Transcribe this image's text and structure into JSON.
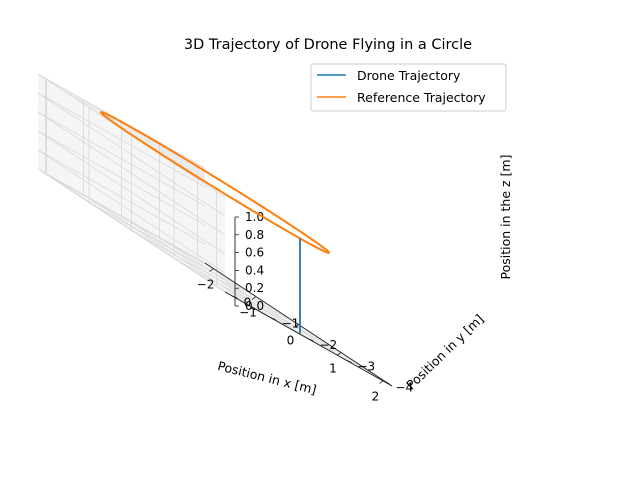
{
  "chart_data": {
    "type": "line",
    "projection": "3d",
    "title": "3D Trajectory of Drone Flying in a Circle",
    "xlabel": "Position in x [m]",
    "ylabel": "Position in y [m]",
    "zlabel": "Position in the z [m]",
    "xlim": [
      -2.2,
      2.2
    ],
    "ylim": [
      -4.2,
      0.2
    ],
    "zlim": [
      0,
      1.0
    ],
    "xticks": [
      "−2",
      "−1",
      "0",
      "1",
      "2"
    ],
    "yticks": [
      "−4",
      "−3",
      "−2",
      "−1",
      "0"
    ],
    "zticks": [
      "0.0",
      "0.2",
      "0.4",
      "0.6",
      "0.8",
      "1.0"
    ],
    "grid": true,
    "legend_position": "top-right",
    "series": [
      {
        "name": "Drone Trajectory",
        "color": "#1f77b4",
        "shape": "vertical climb",
        "x": [
          2.0,
          2.0
        ],
        "y": [
          -2.0,
          -2.0
        ],
        "z": [
          0.0,
          1.0
        ]
      },
      {
        "name": "Reference Trajectory",
        "color": "#ff7f0e",
        "shape": "circle",
        "center": [
          0,
          -2.0,
          1.0
        ],
        "radius": 2.0
      }
    ]
  }
}
